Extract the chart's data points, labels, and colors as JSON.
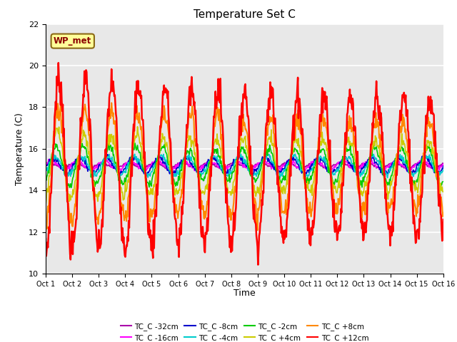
{
  "title": "Temperature Set C",
  "xlabel": "Time",
  "ylabel": "Temperature (C)",
  "ylim": [
    10,
    22
  ],
  "xlim": [
    0,
    15
  ],
  "yticks": [
    10,
    12,
    14,
    16,
    18,
    20,
    22
  ],
  "xtick_labels": [
    "Oct 1",
    "Oct 2",
    "Oct 3",
    "Oct 4",
    "Oct 5",
    "Oct 6",
    "Oct 7",
    "Oct 8",
    "Oct 9",
    "Oct 10",
    "Oct 11",
    "Oct 12",
    "Oct 13",
    "Oct 14",
    "Oct 15",
    "Oct 16"
  ],
  "annotation_text": "WP_met",
  "annotation_text_color": "#8B0000",
  "annotation_bg_color": "#FFFF99",
  "annotation_border_color": "#8B6914",
  "series": [
    {
      "label": "TC_C -32cm",
      "color": "#AA00AA",
      "linewidth": 1.2
    },
    {
      "label": "TC_C -16cm",
      "color": "#FF00FF",
      "linewidth": 1.2
    },
    {
      "label": "TC_C -8cm",
      "color": "#0000CC",
      "linewidth": 1.2
    },
    {
      "label": "TC_C -4cm",
      "color": "#00CCCC",
      "linewidth": 1.2
    },
    {
      "label": "TC_C -2cm",
      "color": "#00CC00",
      "linewidth": 1.2
    },
    {
      "label": "TC_C +4cm",
      "color": "#CCCC00",
      "linewidth": 1.2
    },
    {
      "label": "TC_C +8cm",
      "color": "#FF8800",
      "linewidth": 1.5
    },
    {
      "label": "TC_C +12cm",
      "color": "#FF0000",
      "linewidth": 1.8
    }
  ],
  "background_color": "#E8E8E8",
  "grid_color": "#FFFFFF",
  "title_fontsize": 11,
  "label_fontsize": 9,
  "tick_fontsize": 8
}
